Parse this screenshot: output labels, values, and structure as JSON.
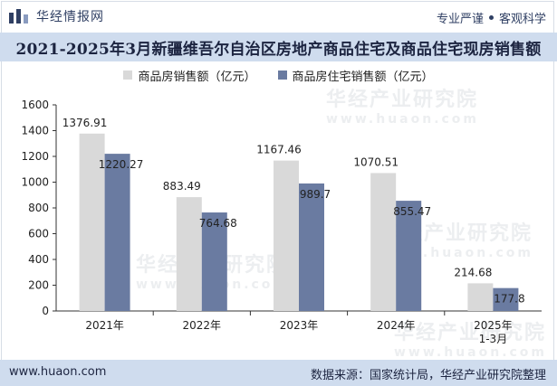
{
  "header": {
    "brand_name": "华经情报网",
    "tagline_left": "专业严谨",
    "tagline_right": "客观科学",
    "title": "2021-2025年3月新疆维吾尔自治区房地产商品住宅及商品住宅现房销售额"
  },
  "footer": {
    "url": "www.huaon.com",
    "source": "数据来源：国家统计局，华经产业研究院整理"
  },
  "watermark": {
    "line1": "华经产业研究院",
    "line2": "www.huaon.com"
  },
  "colors": {
    "series1": "#d9d9d9",
    "series2": "#6a7ba1",
    "title_band": "#cfdcee",
    "text_dark": "#1c2440"
  },
  "chart_data": {
    "type": "bar",
    "title": "2021-2025年3月新疆维吾尔自治区房地产商品住宅及商品住宅现房销售额",
    "categories": [
      "2021年",
      "2022年",
      "2023年",
      "2024年",
      "2025年\n1-3月"
    ],
    "series": [
      {
        "name": "商品房销售额（亿元）",
        "values": [
          1376.91,
          883.49,
          1167.46,
          1070.51,
          214.68
        ]
      },
      {
        "name": "商品房住宅销售额（亿元）",
        "values": [
          1220.27,
          764.68,
          989.7,
          855.47,
          177.8
        ]
      }
    ],
    "value_labels": [
      [
        "1376.91",
        "883.49",
        "1167.46",
        "1070.51",
        "214.68"
      ],
      [
        "1220.27",
        "764.68",
        "989.7",
        "855.47",
        "177.8"
      ]
    ],
    "yticks": [
      0,
      200,
      400,
      600,
      800,
      1000,
      1200,
      1400,
      1600
    ],
    "ylim": [
      0,
      1600
    ],
    "grid": false,
    "legend_position": "top-center",
    "xlabel": "",
    "ylabel": ""
  }
}
